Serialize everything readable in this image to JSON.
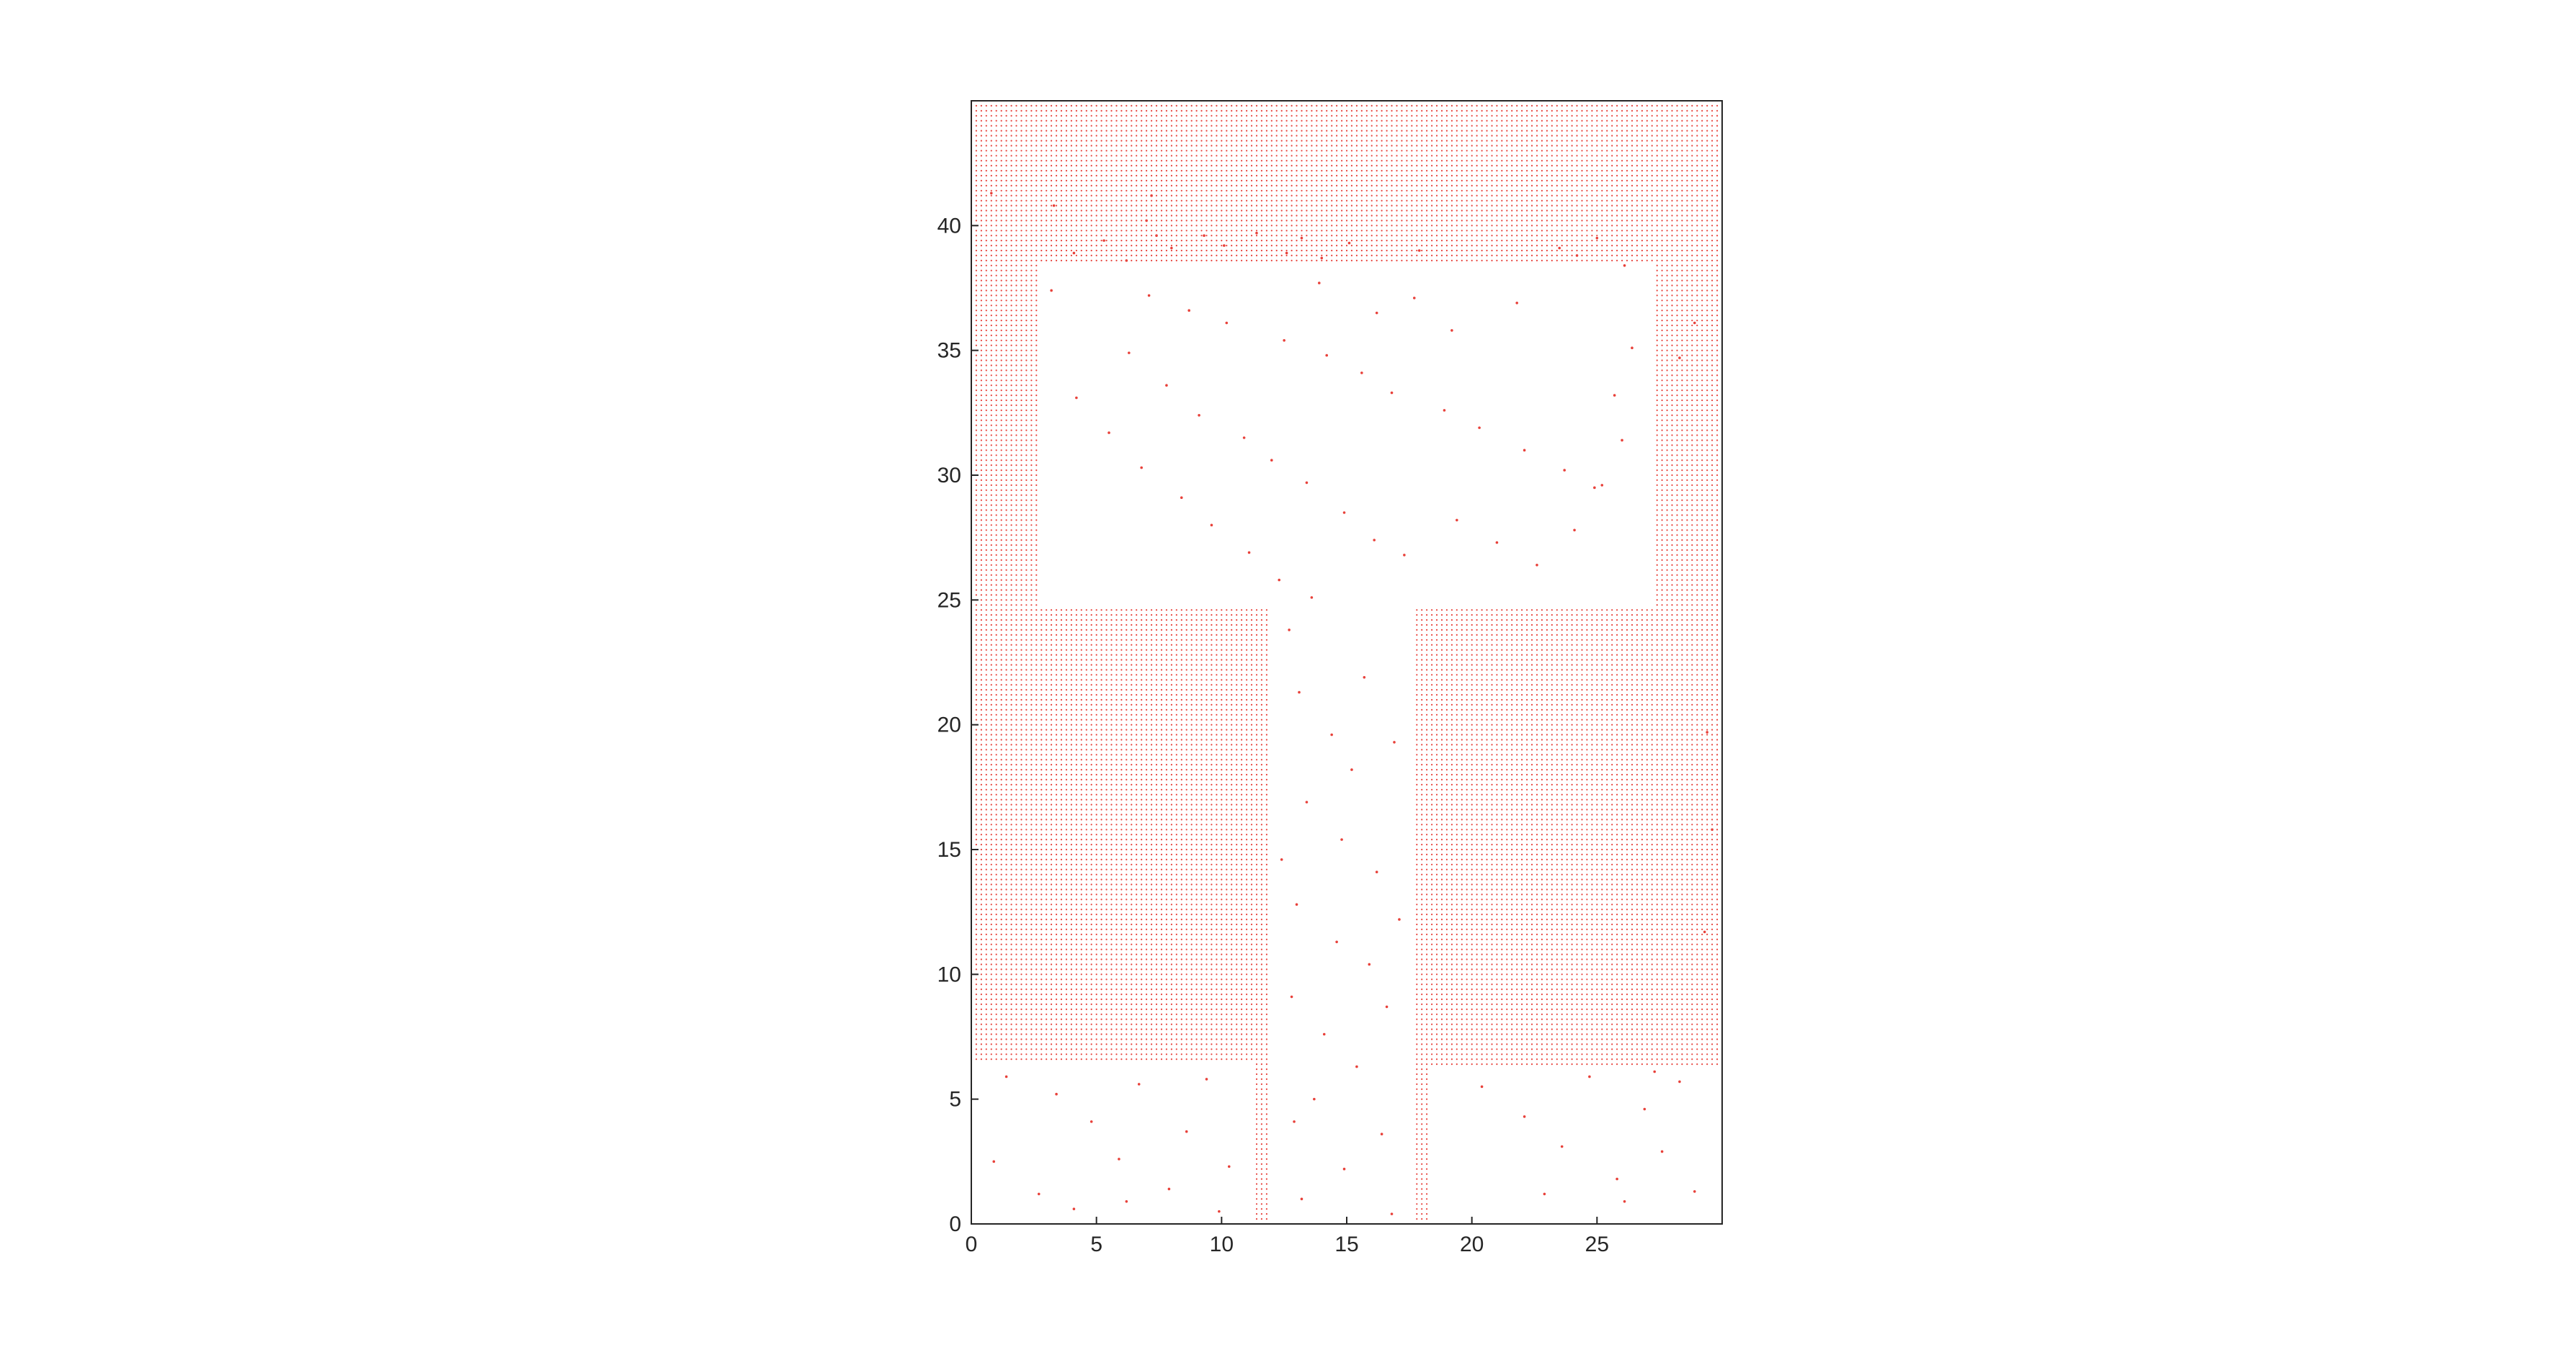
{
  "chart_data": {
    "type": "scatter",
    "title": "",
    "xlabel": "",
    "ylabel": "",
    "xlim": [
      0,
      30
    ],
    "ylim": [
      0,
      45
    ],
    "xticks": [
      0,
      5,
      10,
      15,
      20,
      25
    ],
    "yticks": [
      0,
      5,
      10,
      15,
      20,
      25,
      30,
      35,
      40
    ],
    "xtick_labels": [
      "0",
      "5",
      "10",
      "15",
      "20",
      "25"
    ],
    "ytick_labels": [
      "0",
      "5",
      "10",
      "15",
      "20",
      "25",
      "30",
      "35",
      "40"
    ],
    "grid": false,
    "box": true,
    "marker": ".",
    "grid_step": 0.2,
    "series": [
      {
        "color": "#e8413a",
        "description_of_occupied_cells": "dense occupancy grid points; free (white) regions listed below",
        "free_regions": [
          {
            "x": [
              2.6,
              27.2
            ],
            "y": [
              24.6,
              38.6
            ]
          },
          {
            "x": [
              11.8,
              17.6
            ],
            "y": [
              0,
              24.6
            ]
          },
          {
            "x": [
              0,
              11.2
            ],
            "y": [
              0,
              6.6
            ]
          },
          {
            "x": [
              18.2,
              30
            ],
            "y": [
              0,
              6.4
            ]
          }
        ],
        "scattered_points": [
          [
            3.2,
            37.4
          ],
          [
            4.1,
            38.9
          ],
          [
            5.3,
            39.4
          ],
          [
            6.2,
            38.6
          ],
          [
            7.4,
            39.6
          ],
          [
            8.0,
            39.1
          ],
          [
            9.3,
            39.6
          ],
          [
            10.1,
            39.2
          ],
          [
            11.4,
            39.7
          ],
          [
            12.6,
            38.9
          ],
          [
            13.2,
            39.5
          ],
          [
            14.0,
            38.7
          ],
          [
            15.1,
            39.3
          ],
          [
            17.9,
            39.0
          ],
          [
            23.5,
            39.1
          ],
          [
            24.2,
            38.8
          ],
          [
            25.0,
            39.5
          ],
          [
            26.1,
            38.4
          ],
          [
            7.1,
            37.2
          ],
          [
            8.7,
            36.6
          ],
          [
            10.2,
            36.1
          ],
          [
            12.5,
            35.4
          ],
          [
            14.2,
            34.8
          ],
          [
            15.6,
            34.1
          ],
          [
            16.8,
            33.3
          ],
          [
            18.9,
            32.6
          ],
          [
            20.3,
            31.9
          ],
          [
            22.1,
            31.0
          ],
          [
            23.7,
            30.2
          ],
          [
            24.9,
            29.5
          ],
          [
            6.3,
            34.9
          ],
          [
            7.8,
            33.6
          ],
          [
            9.1,
            32.4
          ],
          [
            10.9,
            31.5
          ],
          [
            12.0,
            30.6
          ],
          [
            13.4,
            29.7
          ],
          [
            14.9,
            28.5
          ],
          [
            16.1,
            27.4
          ],
          [
            17.3,
            26.8
          ],
          [
            19.4,
            28.2
          ],
          [
            21.0,
            27.3
          ],
          [
            22.6,
            26.4
          ],
          [
            4.2,
            33.1
          ],
          [
            5.5,
            31.7
          ],
          [
            6.8,
            30.3
          ],
          [
            8.4,
            29.1
          ],
          [
            9.6,
            28.0
          ],
          [
            11.1,
            26.9
          ],
          [
            12.3,
            25.8
          ],
          [
            13.6,
            25.1
          ],
          [
            26.4,
            35.1
          ],
          [
            25.7,
            33.2
          ],
          [
            26.0,
            31.4
          ],
          [
            25.2,
            29.6
          ],
          [
            24.1,
            27.8
          ],
          [
            21.8,
            36.9
          ],
          [
            19.2,
            35.8
          ],
          [
            17.7,
            37.1
          ],
          [
            16.2,
            36.5
          ],
          [
            13.9,
            37.7
          ],
          [
            12.7,
            23.8
          ],
          [
            13.1,
            21.3
          ],
          [
            14.4,
            19.6
          ],
          [
            15.2,
            18.2
          ],
          [
            13.4,
            16.9
          ],
          [
            14.8,
            15.4
          ],
          [
            16.2,
            14.1
          ],
          [
            13.0,
            12.8
          ],
          [
            14.6,
            11.3
          ],
          [
            15.9,
            10.4
          ],
          [
            12.8,
            9.1
          ],
          [
            14.1,
            7.6
          ],
          [
            15.4,
            6.3
          ],
          [
            13.7,
            5.0
          ],
          [
            16.4,
            3.6
          ],
          [
            14.9,
            2.2
          ],
          [
            13.2,
            1.0
          ],
          [
            16.8,
            0.4
          ],
          [
            12.4,
            14.6
          ],
          [
            17.1,
            12.2
          ],
          [
            16.6,
            8.7
          ],
          [
            12.9,
            4.1
          ],
          [
            15.7,
            21.9
          ],
          [
            16.9,
            19.3
          ],
          [
            3.4,
            5.2
          ],
          [
            4.8,
            4.1
          ],
          [
            5.9,
            2.6
          ],
          [
            6.7,
            5.6
          ],
          [
            7.9,
            1.4
          ],
          [
            8.6,
            3.7
          ],
          [
            9.4,
            5.8
          ],
          [
            10.3,
            2.3
          ],
          [
            2.7,
            1.2
          ],
          [
            4.1,
            0.6
          ],
          [
            6.2,
            0.9
          ],
          [
            9.9,
            0.5
          ],
          [
            0.9,
            2.5
          ],
          [
            1.4,
            5.9
          ],
          [
            20.4,
            5.5
          ],
          [
            22.1,
            4.3
          ],
          [
            23.6,
            3.1
          ],
          [
            24.7,
            5.9
          ],
          [
            25.8,
            1.8
          ],
          [
            26.9,
            4.6
          ],
          [
            27.6,
            2.9
          ],
          [
            28.3,
            5.7
          ],
          [
            22.9,
            1.2
          ],
          [
            26.1,
            0.9
          ],
          [
            28.9,
            1.3
          ],
          [
            27.3,
            6.1
          ],
          [
            0.8,
            41.3
          ],
          [
            3.3,
            40.8
          ],
          [
            7.0,
            40.2
          ],
          [
            7.2,
            41.2
          ],
          [
            28.3,
            34.7
          ],
          [
            29.4,
            19.7
          ],
          [
            29.6,
            15.8
          ],
          [
            29.3,
            11.7
          ],
          [
            28.9,
            36.1
          ]
        ]
      }
    ]
  }
}
